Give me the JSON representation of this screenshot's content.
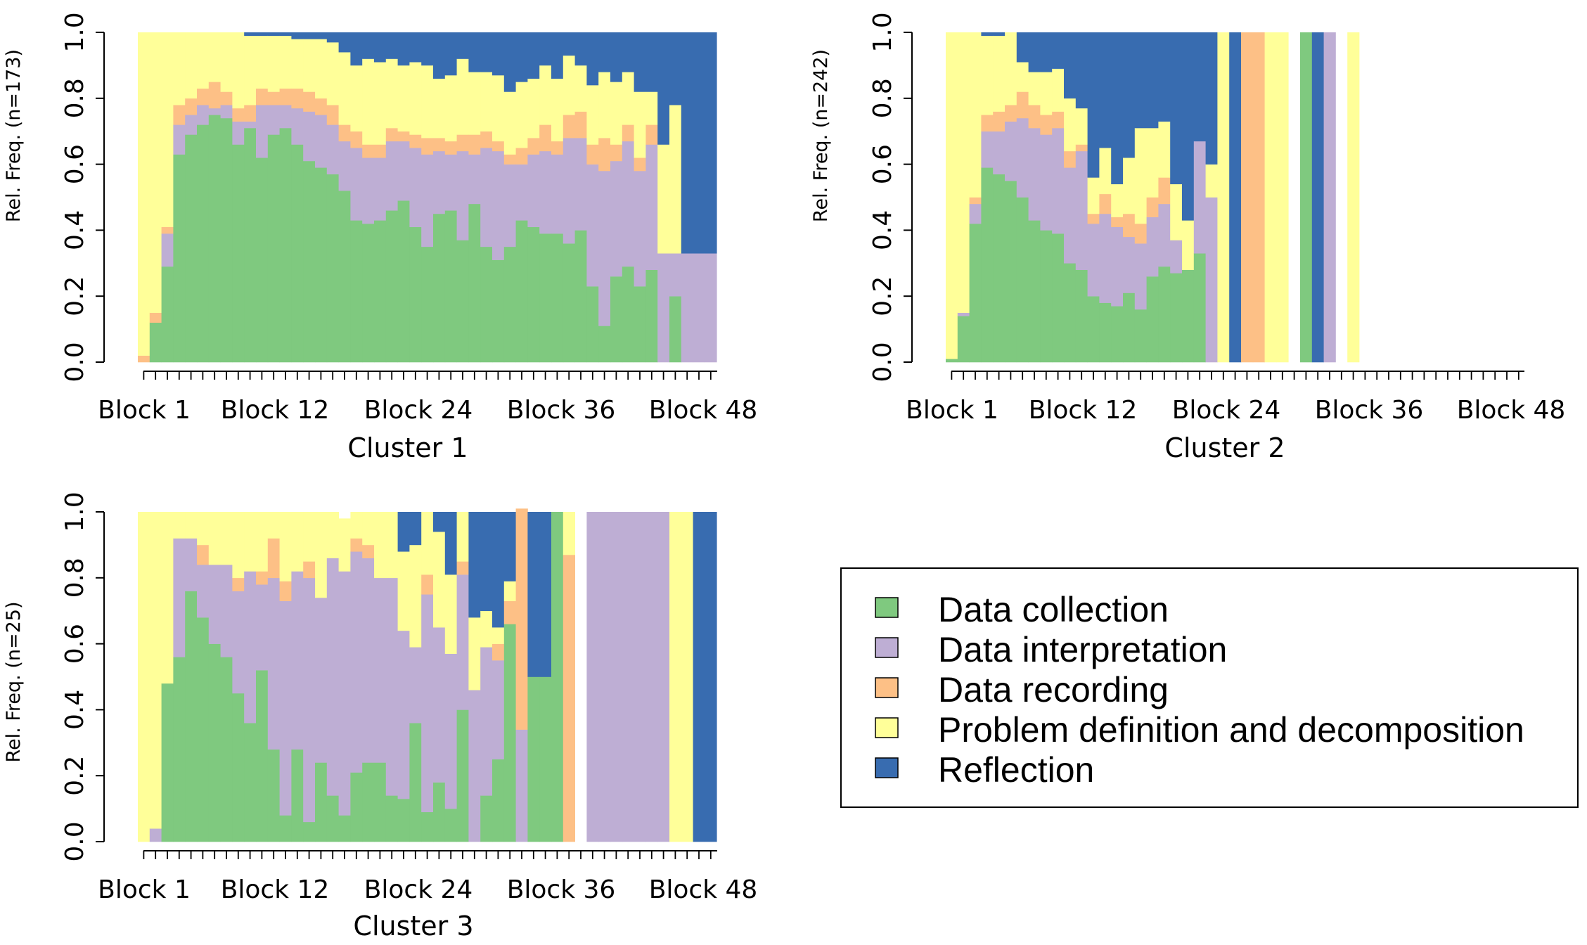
{
  "colors": {
    "Data collection": "#7fc97f",
    "Data interpretation": "#beaed4",
    "Data recording": "#fdc086",
    "Problem definition and decomposition": "#ffff99",
    "Reflection": "#386cb0"
  },
  "legend": {
    "items": [
      "Data collection",
      "Data interpretation",
      "Data recording",
      "Problem definition and decomposition",
      "Reflection"
    ]
  },
  "chart_data": [
    {
      "type": "bar",
      "stacked": true,
      "title": "",
      "xlabel": "Cluster 1",
      "ylabel": "Rel. Freq. (n=173)",
      "ylim": [
        0,
        1
      ],
      "yticks": [
        "0.0",
        "0.2",
        "0.4",
        "0.6",
        "0.8",
        "1.0"
      ],
      "xtick_labels": [
        "Block 1",
        "Block 12",
        "Block 24",
        "Block 36",
        "Block 48"
      ],
      "categories": [
        "1",
        "2",
        "3",
        "4",
        "5",
        "6",
        "7",
        "8",
        "9",
        "10",
        "11",
        "12",
        "13",
        "14",
        "15",
        "16",
        "17",
        "18",
        "19",
        "20",
        "21",
        "22",
        "23",
        "24",
        "25",
        "26",
        "27",
        "28",
        "29",
        "30",
        "31",
        "32",
        "33",
        "34",
        "35",
        "36",
        "37",
        "38",
        "39",
        "40",
        "41",
        "42",
        "43",
        "44",
        "45",
        "46",
        "47",
        "48",
        "49"
      ],
      "series": [
        {
          "name": "Data collection",
          "values": [
            0,
            0.12,
            0.29,
            0.63,
            0.69,
            0.72,
            0.75,
            0.74,
            0.66,
            0.71,
            0.62,
            0.69,
            0.71,
            0.66,
            0.61,
            0.59,
            0.57,
            0.52,
            0.43,
            0.42,
            0.43,
            0.46,
            0.49,
            0.41,
            0.35,
            0.45,
            0.46,
            0.37,
            0.48,
            0.35,
            0.31,
            0.35,
            0.43,
            0.41,
            0.39,
            0.39,
            0.36,
            0.4,
            0.23,
            0.11,
            0.26,
            0.29,
            0.23,
            0.28,
            0,
            0.2,
            0,
            0,
            0
          ]
        },
        {
          "name": "Data interpretation",
          "values": [
            0,
            0,
            0.1,
            0.09,
            0.06,
            0.06,
            0.02,
            0.04,
            0.07,
            0.02,
            0.16,
            0.09,
            0.07,
            0.11,
            0.15,
            0.16,
            0.15,
            0.15,
            0.22,
            0.2,
            0.19,
            0.21,
            0.18,
            0.24,
            0.28,
            0.19,
            0.17,
            0.27,
            0.15,
            0.3,
            0.33,
            0.25,
            0.17,
            0.22,
            0.25,
            0.24,
            0.32,
            0.28,
            0.37,
            0.47,
            0.35,
            0.38,
            0.35,
            0.38,
            0.33,
            0.13,
            0.33,
            0.33,
            0.33
          ]
        },
        {
          "name": "Data recording",
          "values": [
            0.02,
            0.03,
            0.02,
            0.06,
            0.05,
            0.05,
            0.08,
            0.04,
            0.04,
            0.05,
            0.05,
            0.04,
            0.05,
            0.06,
            0.06,
            0.05,
            0.06,
            0.05,
            0.05,
            0.04,
            0.04,
            0.04,
            0.03,
            0.04,
            0.05,
            0.04,
            0.04,
            0.05,
            0.06,
            0.05,
            0.03,
            0.03,
            0.05,
            0.05,
            0.08,
            0.04,
            0.07,
            0.08,
            0.06,
            0.1,
            0.05,
            0.05,
            0.04,
            0.06,
            0,
            0,
            0,
            0,
            0
          ]
        },
        {
          "name": "Problem definition and decomposition",
          "values": [
            0.98,
            0.85,
            0.59,
            0.22,
            0.2,
            0.17,
            0.15,
            0.18,
            0.23,
            0.21,
            0.16,
            0.17,
            0.16,
            0.15,
            0.16,
            0.18,
            0.19,
            0.22,
            0.2,
            0.26,
            0.25,
            0.21,
            0.2,
            0.22,
            0.22,
            0.18,
            0.2,
            0.23,
            0.19,
            0.18,
            0.2,
            0.19,
            0.2,
            0.18,
            0.18,
            0.19,
            0.18,
            0.14,
            0.18,
            0.2,
            0.19,
            0.16,
            0.2,
            0.1,
            0.33,
            0.45,
            0,
            0,
            0
          ]
        },
        {
          "name": "Reflection",
          "values": [
            0,
            0,
            0,
            0,
            0,
            0,
            0,
            0,
            0,
            0.01,
            0.01,
            0.01,
            0.01,
            0.02,
            0.02,
            0.02,
            0.03,
            0.06,
            0.1,
            0.08,
            0.09,
            0.08,
            0.1,
            0.09,
            0.1,
            0.14,
            0.13,
            0.08,
            0.12,
            0.12,
            0.13,
            0.18,
            0.15,
            0.14,
            0.1,
            0.14,
            0.07,
            0.1,
            0.16,
            0.12,
            0.15,
            0.12,
            0.18,
            0.18,
            0.34,
            0.22,
            0.67,
            0.67,
            0.67
          ]
        }
      ]
    },
    {
      "type": "bar",
      "stacked": true,
      "title": "",
      "xlabel": "Cluster 2",
      "ylabel": "Rel. Freq. (n=242)",
      "ylim": [
        0,
        1
      ],
      "yticks": [
        "0.0",
        "0.2",
        "0.4",
        "0.6",
        "0.8",
        "1.0"
      ],
      "xtick_labels": [
        "Block 1",
        "Block 12",
        "Block 24",
        "Block 36",
        "Block 48"
      ],
      "categories": [
        "1",
        "2",
        "3",
        "4",
        "5",
        "6",
        "7",
        "8",
        "9",
        "10",
        "11",
        "12",
        "13",
        "14",
        "15",
        "16",
        "17",
        "18",
        "19",
        "20",
        "21",
        "22",
        "23",
        "24",
        "25",
        "26",
        "27",
        "28",
        "29",
        "30",
        "31",
        "32",
        "33",
        "34",
        "35",
        "36",
        "37",
        "38",
        "39",
        "40",
        "41",
        "42",
        "43",
        "44",
        "45",
        "46",
        "47",
        "48",
        "49"
      ],
      "series": [
        {
          "name": "Data collection",
          "values": [
            0.01,
            0.14,
            0.42,
            0.59,
            0.57,
            0.55,
            0.5,
            0.43,
            0.4,
            0.39,
            0.3,
            0.28,
            0.2,
            0.18,
            0.17,
            0.21,
            0.16,
            0.26,
            0.29,
            0.27,
            0.28,
            0.33,
            0,
            0,
            0,
            0,
            0,
            0,
            0,
            0,
            1,
            0,
            0,
            0,
            0,
            0,
            0,
            0,
            0,
            0,
            0,
            0,
            0,
            0,
            0,
            0,
            0,
            0,
            0
          ]
        },
        {
          "name": "Data interpretation",
          "values": [
            0,
            0.01,
            0.06,
            0.11,
            0.13,
            0.18,
            0.24,
            0.28,
            0.29,
            0.32,
            0.29,
            0.36,
            0.22,
            0.27,
            0.24,
            0.17,
            0.2,
            0.18,
            0.19,
            0.1,
            0,
            0.34,
            0.5,
            0,
            0,
            0,
            0,
            0,
            0,
            0,
            0,
            0,
            1,
            0,
            0,
            0,
            0,
            0,
            0,
            0,
            0,
            0,
            0,
            0,
            0,
            0,
            0,
            0,
            0
          ]
        },
        {
          "name": "Data recording",
          "values": [
            0,
            0,
            0.02,
            0.05,
            0.06,
            0.05,
            0.08,
            0.07,
            0.06,
            0.05,
            0.05,
            0.02,
            0.03,
            0.06,
            0.03,
            0.07,
            0.06,
            0.06,
            0.08,
            0,
            0,
            0,
            0,
            0,
            0,
            1,
            1,
            0,
            0,
            0,
            0,
            0,
            0,
            0,
            0,
            0,
            0,
            0,
            0,
            0,
            0,
            0,
            0,
            0,
            0,
            0,
            0,
            0,
            0
          ]
        },
        {
          "name": "Problem definition and decomposition",
          "values": [
            0.99,
            0.85,
            0.5,
            0.24,
            0.23,
            0.22,
            0.09,
            0.1,
            0.13,
            0.13,
            0.16,
            0.11,
            0.11,
            0.14,
            0.1,
            0.17,
            0.29,
            0.21,
            0.17,
            0.17,
            0.15,
            0,
            0.1,
            1,
            0,
            0,
            0,
            1,
            1,
            0,
            0,
            0,
            0,
            0,
            1,
            0,
            0,
            0,
            0,
            0,
            0,
            0,
            0,
            0,
            0,
            0,
            0,
            0,
            0
          ]
        },
        {
          "name": "Reflection",
          "values": [
            0,
            0,
            0,
            0.01,
            0.01,
            0,
            0.09,
            0.12,
            0.12,
            0.11,
            0.2,
            0.23,
            0.44,
            0.35,
            0.46,
            0.38,
            0.29,
            0.29,
            0.27,
            0.46,
            0.57,
            0.33,
            0.4,
            0,
            1,
            0,
            0,
            0,
            0,
            0,
            0,
            1,
            0,
            0,
            0,
            0,
            0,
            0,
            0,
            0,
            0,
            0,
            0,
            0,
            0,
            0,
            0,
            0,
            0
          ]
        }
      ]
    },
    {
      "type": "bar",
      "stacked": true,
      "title": "",
      "xlabel": "Cluster 3",
      "ylabel": "Rel. Freq. (n=25)",
      "ylim": [
        0,
        1
      ],
      "yticks": [
        "0.0",
        "0.2",
        "0.4",
        "0.6",
        "0.8",
        "1.0"
      ],
      "xtick_labels": [
        "Block 1",
        "Block 12",
        "Block 24",
        "Block 36",
        "Block 48"
      ],
      "categories": [
        "1",
        "2",
        "3",
        "4",
        "5",
        "6",
        "7",
        "8",
        "9",
        "10",
        "11",
        "12",
        "13",
        "14",
        "15",
        "16",
        "17",
        "18",
        "19",
        "20",
        "21",
        "22",
        "23",
        "24",
        "25",
        "26",
        "27",
        "28",
        "29",
        "30",
        "31",
        "32",
        "33",
        "34",
        "35",
        "36",
        "37",
        "38",
        "39",
        "40",
        "41",
        "42",
        "43",
        "44",
        "45",
        "46",
        "47",
        "48",
        "49"
      ],
      "series": [
        {
          "name": "Data collection",
          "values": [
            0,
            0,
            0.48,
            0.56,
            0.76,
            0.68,
            0.6,
            0.56,
            0.45,
            0.36,
            0.52,
            0.28,
            0.08,
            0.28,
            0.06,
            0.24,
            0.14,
            0.08,
            0.21,
            0.24,
            0.24,
            0.14,
            0.13,
            0.36,
            0.09,
            0.18,
            0.1,
            0.4,
            0,
            0.14,
            0.25,
            0.66,
            0,
            0.5,
            0.5,
            1,
            0,
            0,
            0,
            0,
            0,
            0,
            0,
            0,
            0,
            0,
            0,
            0,
            0
          ]
        },
        {
          "name": "Data interpretation",
          "values": [
            0,
            0.04,
            0,
            0.36,
            0.16,
            0.16,
            0.24,
            0.28,
            0.31,
            0.46,
            0.26,
            0.52,
            0.65,
            0.54,
            0.74,
            0.5,
            0.72,
            0.74,
            0.67,
            0.62,
            0.56,
            0.66,
            0.51,
            0.23,
            0.66,
            0.47,
            0.47,
            0.41,
            0.46,
            0.45,
            0.3,
            0,
            0.34,
            0,
            0,
            0,
            0,
            0,
            1,
            1,
            1,
            1,
            1,
            1,
            1,
            0,
            0,
            0,
            0
          ]
        },
        {
          "name": "Data recording",
          "values": [
            0,
            0,
            0,
            0,
            0,
            0.06,
            0,
            0,
            0.04,
            0,
            0.04,
            0.12,
            0.06,
            0,
            0.05,
            0,
            0,
            0,
            0.04,
            0.04,
            0,
            0,
            0,
            0,
            0.06,
            0,
            0,
            0.04,
            0,
            0,
            0.05,
            0.07,
            0.67,
            0,
            0,
            0,
            0.87,
            0,
            0,
            0,
            0,
            0,
            0,
            0,
            0,
            0,
            0,
            0,
            0
          ]
        },
        {
          "name": "Problem definition and decomposition",
          "values": [
            1,
            0.96,
            0.52,
            0.08,
            0.08,
            0.1,
            0.16,
            0.16,
            0.2,
            0.18,
            0.18,
            0.08,
            0.21,
            0.18,
            0.15,
            0.26,
            0.14,
            0.16,
            0.08,
            0.1,
            0.2,
            0.2,
            0.24,
            0.31,
            0.19,
            0.29,
            0.24,
            0.15,
            0.22,
            0.11,
            0.05,
            0.06,
            0,
            0,
            0,
            0,
            0.13,
            0,
            0,
            0,
            0,
            0,
            0,
            0,
            0,
            1,
            1,
            0,
            0
          ]
        },
        {
          "name": "Reflection",
          "values": [
            0,
            0,
            0,
            0,
            0,
            0,
            0,
            0,
            0,
            0,
            0,
            0,
            0,
            0,
            0,
            0,
            0,
            0,
            0,
            0,
            0,
            0,
            0.12,
            0.1,
            0,
            0.06,
            0.19,
            0,
            0.32,
            0.3,
            0.35,
            0.21,
            0,
            0.5,
            0.5,
            0,
            0,
            0,
            0,
            0,
            0,
            0,
            0,
            0,
            0,
            0,
            0,
            1,
            1
          ]
        }
      ]
    }
  ]
}
